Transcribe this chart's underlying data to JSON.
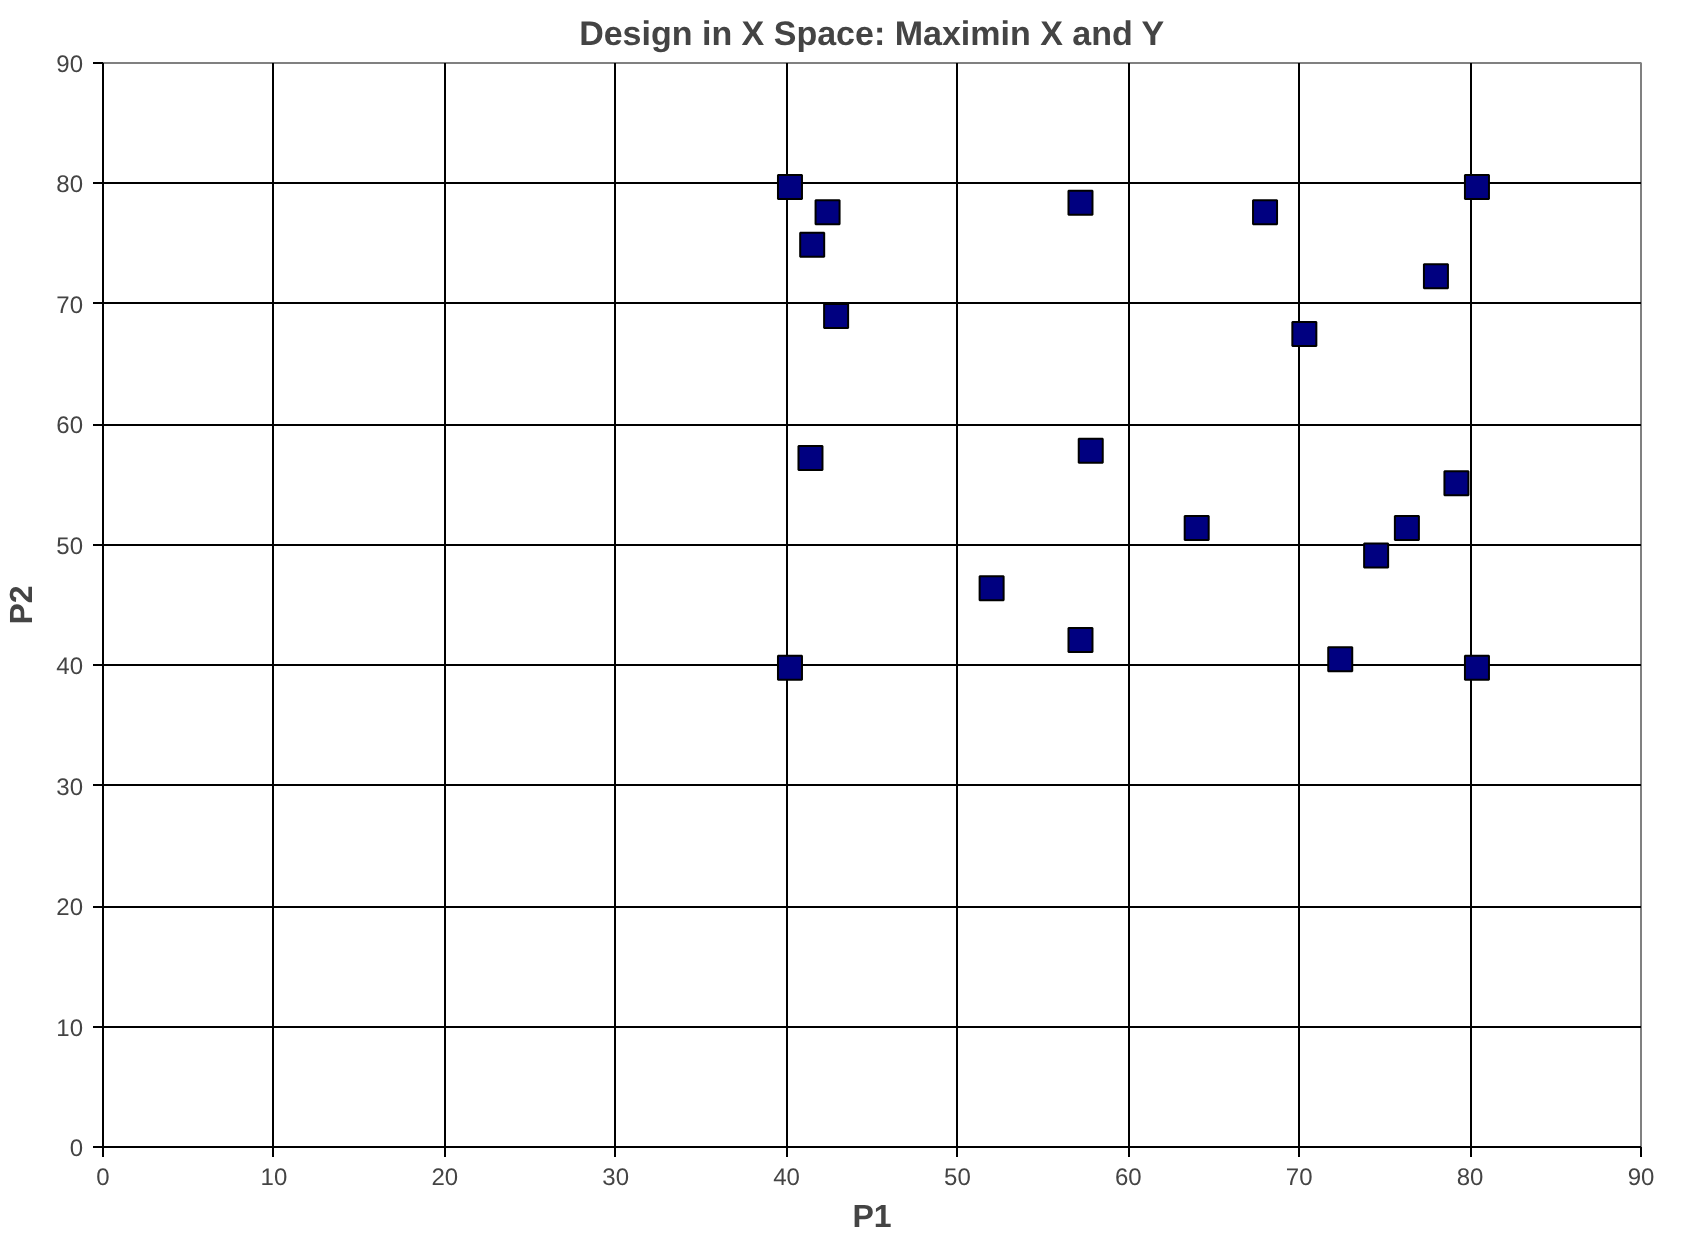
{
  "chart_data": {
    "type": "scatter",
    "title": "Design in X Space: Maximin X and Y",
    "xlabel": "P1",
    "ylabel": "P2",
    "x": [
      40.2,
      42.4,
      41.5,
      42.9,
      41.4,
      40.2,
      52.0,
      57.2,
      57.8,
      57.2,
      64.0,
      68.0,
      70.3,
      78.0,
      72.4,
      74.5,
      76.3,
      79.2,
      80.4,
      80.4
    ],
    "series": [
      {
        "color": "#000080",
        "values": [
          79.7,
          77.6,
          74.9,
          69.0,
          57.2,
          39.8,
          46.4,
          78.4,
          57.8,
          42.1,
          51.4,
          77.6,
          67.5,
          72.3,
          40.5,
          49.1,
          51.4,
          55.1,
          79.7,
          39.8
        ]
      }
    ],
    "xlim": [
      0,
      90
    ],
    "ylim": [
      0,
      90
    ],
    "xticks": [
      0,
      10,
      20,
      30,
      40,
      50,
      60,
      70,
      80,
      90
    ],
    "yticks": [
      0,
      10,
      20,
      30,
      40,
      50,
      60,
      70,
      80,
      90
    ],
    "grid": true,
    "marker": "square"
  }
}
